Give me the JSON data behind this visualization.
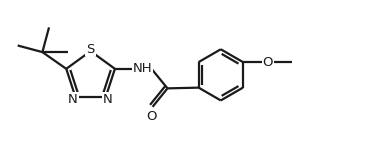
{
  "bg": "#ffffff",
  "lc": "#1a1a1a",
  "lw": 1.6,
  "fs": 9.5,
  "fw": 3.73,
  "fh": 1.57,
  "dpi": 100,
  "xlim": [
    0,
    10.5
  ],
  "ylim": [
    0.2,
    4.4
  ]
}
